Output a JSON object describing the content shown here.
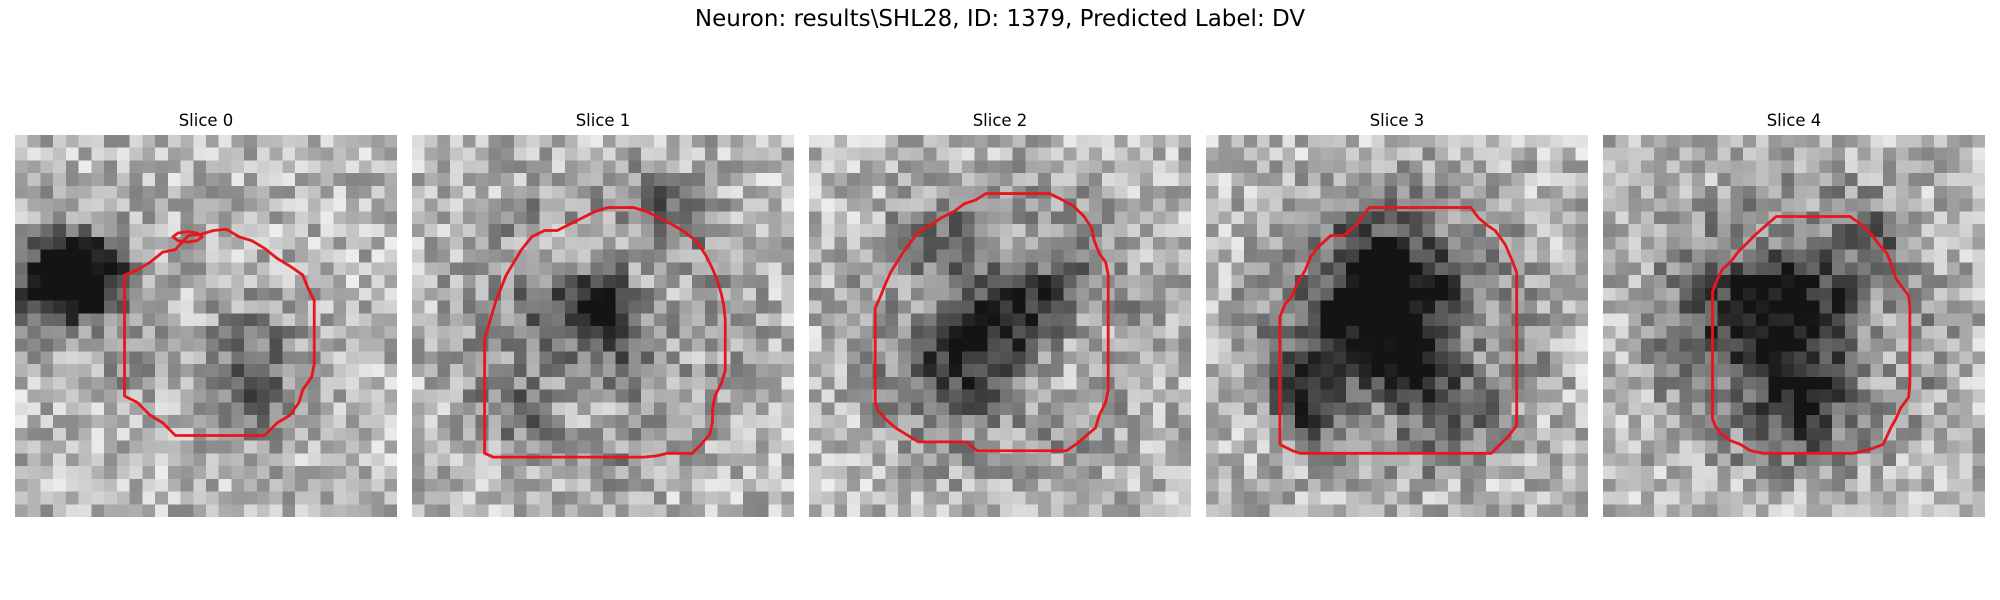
{
  "figure": {
    "title": "Neuron: results\\SHL28, ID: 1379, Predicted Label: DV"
  },
  "colors": {
    "contour": "#e8151b",
    "background": "#ffffff"
  },
  "panels": [
    {
      "title": "Slice 0"
    },
    {
      "title": "Slice 1"
    },
    {
      "title": "Slice 2"
    },
    {
      "title": "Slice 3"
    },
    {
      "title": "Slice 4"
    }
  ]
}
